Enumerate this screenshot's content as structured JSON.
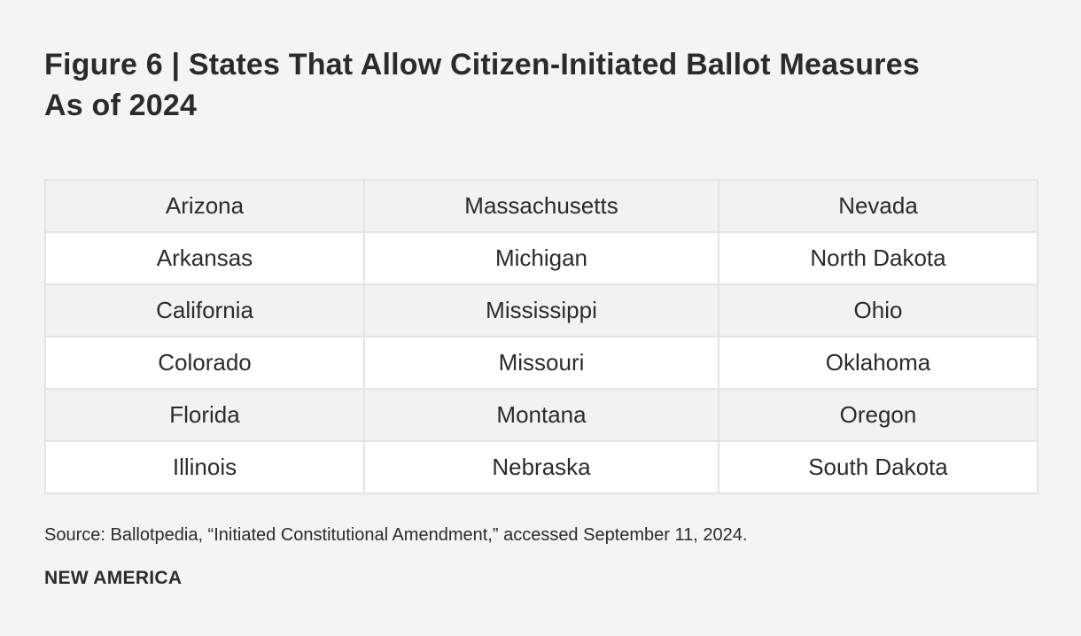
{
  "figure": {
    "title_line1": "Figure 6 | States That Allow Citizen-Initiated Ballot Measures",
    "title_line2": "As of 2024"
  },
  "table": {
    "rows": [
      [
        "Arizona",
        "Massachusetts",
        "Nevada"
      ],
      [
        "Arkansas",
        "Michigan",
        "North Dakota"
      ],
      [
        "California",
        "Mississippi",
        "Ohio"
      ],
      [
        "Colorado",
        "Missouri",
        "Oklahoma"
      ],
      [
        "Florida",
        "Montana",
        "Oregon"
      ],
      [
        "Illinois",
        "Nebraska",
        "South Dakota"
      ]
    ]
  },
  "source": "Source: Ballotpedia, “Initiated Constitutional Amendment,” accessed September 11, 2024.",
  "brand": "NEW AMERICA",
  "colors": {
    "background": "#f4f4f4",
    "row_shaded": "#f2f2f2",
    "row_white": "#ffffff",
    "border": "#e4e4e4",
    "text": "#2b2b2b"
  }
}
